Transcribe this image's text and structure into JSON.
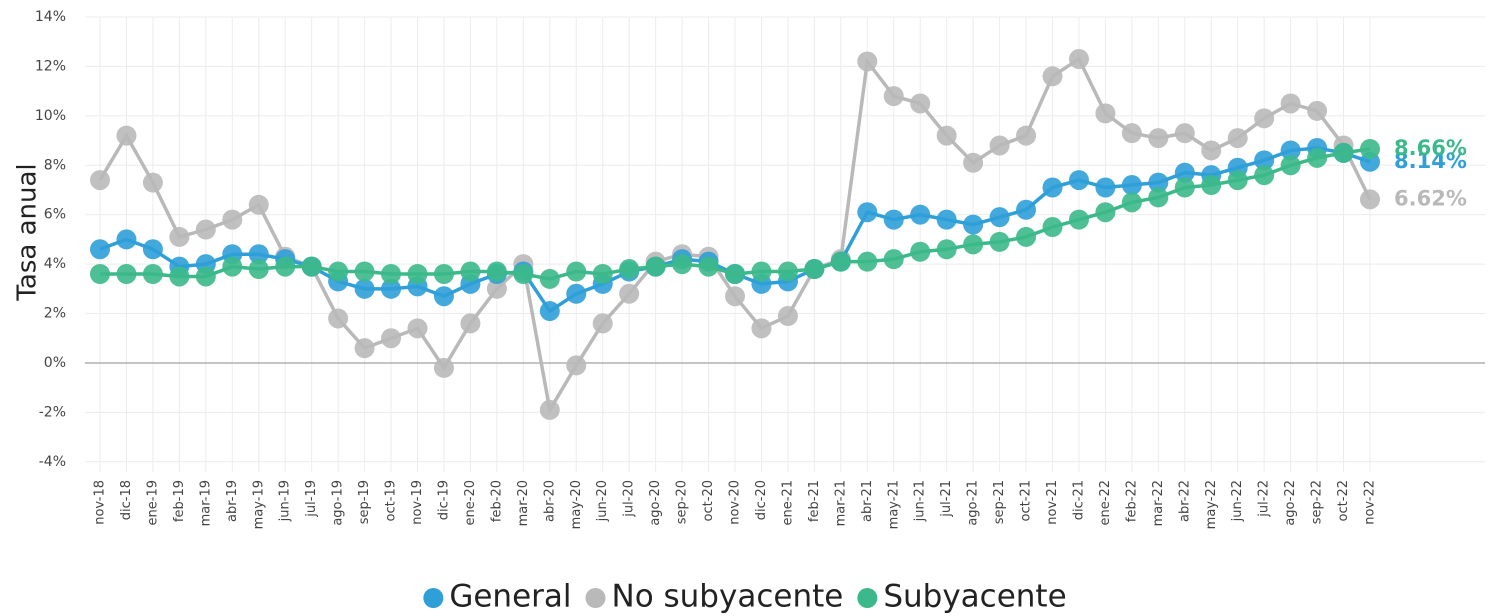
{
  "chart_data": {
    "type": "line",
    "y_label": "Tasa anual",
    "categories": [
      "nov-18",
      "dic-18",
      "ene-19",
      "feb-19",
      "mar-19",
      "abr-19",
      "may-19",
      "jun-19",
      "jul-19",
      "ago-19",
      "sep-19",
      "oct-19",
      "nov-19",
      "dic-19",
      "ene-20",
      "feb-20",
      "mar-20",
      "abr-20",
      "may-20",
      "jun-20",
      "jul-20",
      "ago-20",
      "sep-20",
      "oct-20",
      "nov-20",
      "dic-20",
      "ene-21",
      "feb-21",
      "mar-21",
      "abr-21",
      "may-21",
      "jun-21",
      "jul-21",
      "ago-21",
      "sep-21",
      "oct-21",
      "nov-21",
      "dic-21",
      "ene-22",
      "feb-22",
      "mar-22",
      "abr-22",
      "may-22",
      "jun-22",
      "jul-22",
      "ago-22",
      "sep-22",
      "oct-22",
      "nov-22"
    ],
    "series": [
      {
        "name": "General",
        "color": "#2f9fd8",
        "values": [
          4.6,
          5.0,
          4.6,
          3.9,
          4.0,
          4.4,
          4.4,
          4.2,
          3.9,
          3.3,
          3.0,
          3.0,
          3.1,
          2.7,
          3.2,
          3.6,
          3.7,
          2.1,
          2.8,
          3.2,
          3.7,
          3.9,
          4.2,
          4.1,
          3.6,
          3.2,
          3.3,
          3.8,
          4.1,
          6.1,
          5.8,
          6.0,
          5.8,
          5.6,
          5.9,
          6.2,
          7.1,
          7.4,
          7.1,
          7.2,
          7.3,
          7.7,
          7.6,
          7.9,
          8.2,
          8.6,
          8.7,
          8.5,
          8.14
        ],
        "value_labels": [
          null,
          null,
          null,
          null,
          null,
          null,
          null,
          null,
          null,
          null,
          null,
          null,
          null,
          null,
          null,
          null,
          null,
          null,
          null,
          null,
          null,
          null,
          null,
          null,
          null,
          null,
          null,
          null,
          null,
          null,
          null,
          null,
          null,
          null,
          null,
          null,
          null,
          null,
          null,
          null,
          null,
          null,
          null,
          null,
          null,
          null,
          null,
          null,
          "8.14%"
        ]
      },
      {
        "name": "No subyacente",
        "color": "#b9b9b9",
        "values": [
          7.4,
          9.2,
          7.3,
          5.1,
          5.4,
          5.8,
          6.4,
          4.3,
          3.9,
          1.8,
          0.6,
          1.0,
          1.4,
          -0.2,
          1.6,
          3.0,
          4.0,
          -1.9,
          -0.1,
          1.6,
          2.8,
          4.1,
          4.4,
          4.3,
          2.7,
          1.4,
          1.9,
          3.8,
          4.2,
          12.2,
          10.8,
          10.5,
          9.2,
          8.1,
          8.8,
          9.2,
          11.6,
          12.3,
          10.1,
          9.3,
          9.1,
          9.3,
          8.6,
          9.1,
          9.9,
          10.5,
          10.2,
          8.8,
          6.62
        ],
        "value_labels": [
          null,
          null,
          null,
          null,
          null,
          null,
          null,
          null,
          null,
          null,
          null,
          null,
          null,
          null,
          null,
          null,
          null,
          null,
          null,
          null,
          null,
          null,
          null,
          null,
          null,
          null,
          null,
          null,
          null,
          null,
          null,
          null,
          null,
          null,
          null,
          null,
          null,
          null,
          null,
          null,
          null,
          null,
          null,
          null,
          null,
          null,
          null,
          null,
          "6.62%"
        ]
      },
      {
        "name": "Subyacente",
        "color": "#3cb98a",
        "values": [
          3.6,
          3.6,
          3.6,
          3.5,
          3.5,
          3.9,
          3.8,
          3.9,
          3.9,
          3.7,
          3.7,
          3.6,
          3.6,
          3.6,
          3.7,
          3.7,
          3.6,
          3.4,
          3.7,
          3.6,
          3.8,
          3.9,
          4.0,
          3.9,
          3.6,
          3.7,
          3.7,
          3.8,
          4.1,
          4.1,
          4.2,
          4.5,
          4.6,
          4.8,
          4.9,
          5.1,
          5.5,
          5.8,
          6.1,
          6.5,
          6.7,
          7.1,
          7.2,
          7.4,
          7.6,
          8.0,
          8.3,
          8.5,
          8.66
        ],
        "value_labels": [
          null,
          null,
          null,
          null,
          null,
          null,
          null,
          null,
          null,
          null,
          null,
          null,
          null,
          null,
          null,
          null,
          null,
          null,
          null,
          null,
          null,
          null,
          null,
          null,
          null,
          null,
          null,
          null,
          null,
          null,
          null,
          null,
          null,
          null,
          null,
          null,
          null,
          null,
          null,
          null,
          null,
          null,
          null,
          null,
          null,
          null,
          null,
          null,
          "8.66%"
        ]
      }
    ],
    "ylim": [
      -4.8,
      14.3
    ],
    "yticks": [
      {
        "value": -4,
        "label": "-4%"
      },
      {
        "value": -2,
        "label": "-2%"
      },
      {
        "value": 0,
        "label": "0%"
      },
      {
        "value": 2,
        "label": "2%"
      },
      {
        "value": 4,
        "label": "4%"
      },
      {
        "value": 6,
        "label": "6%"
      },
      {
        "value": 8,
        "label": "8%"
      },
      {
        "value": 10,
        "label": "10%"
      },
      {
        "value": 12,
        "label": "12%"
      },
      {
        "value": 14,
        "label": "14%"
      }
    ],
    "grid": true,
    "legend": "bottom"
  }
}
